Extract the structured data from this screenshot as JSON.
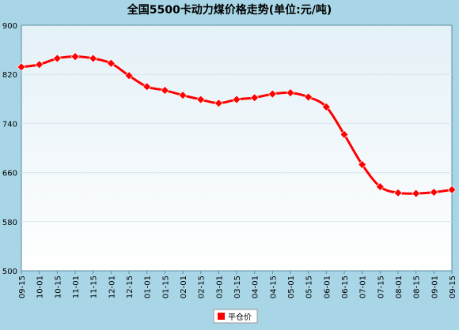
{
  "chart_data": {
    "type": "line",
    "title": "全国5500卡动力煤价格走势(单位:元/吨)",
    "categories": [
      "09-15",
      "10-01",
      "10-15",
      "11-01",
      "11-15",
      "12-01",
      "12-15",
      "01-01",
      "01-15",
      "02-01",
      "02-15",
      "03-01",
      "03-15",
      "04-01",
      "04-15",
      "05-01",
      "05-15",
      "06-01",
      "06-15",
      "07-01",
      "07-15",
      "08-01",
      "08-15",
      "09-01",
      "09-15"
    ],
    "series": [
      {
        "name": "平仓价",
        "color": "#ff0000",
        "values": [
          832,
          836,
          846,
          849,
          846,
          838,
          818,
          800,
          794,
          786,
          779,
          773,
          779,
          782,
          788,
          790,
          783,
          767,
          722,
          673,
          637,
          627,
          626,
          628,
          632
        ]
      }
    ],
    "yticks": [
      900,
      820,
      740,
      660,
      580,
      500
    ],
    "ylim": [
      500,
      900
    ],
    "grid": true,
    "legend_position": "bottom-center",
    "colors": {
      "background": "#a9d6e6",
      "plot_bg": "#f4fafc",
      "line": "#ff0000",
      "grid": "#d6e6ee"
    }
  }
}
